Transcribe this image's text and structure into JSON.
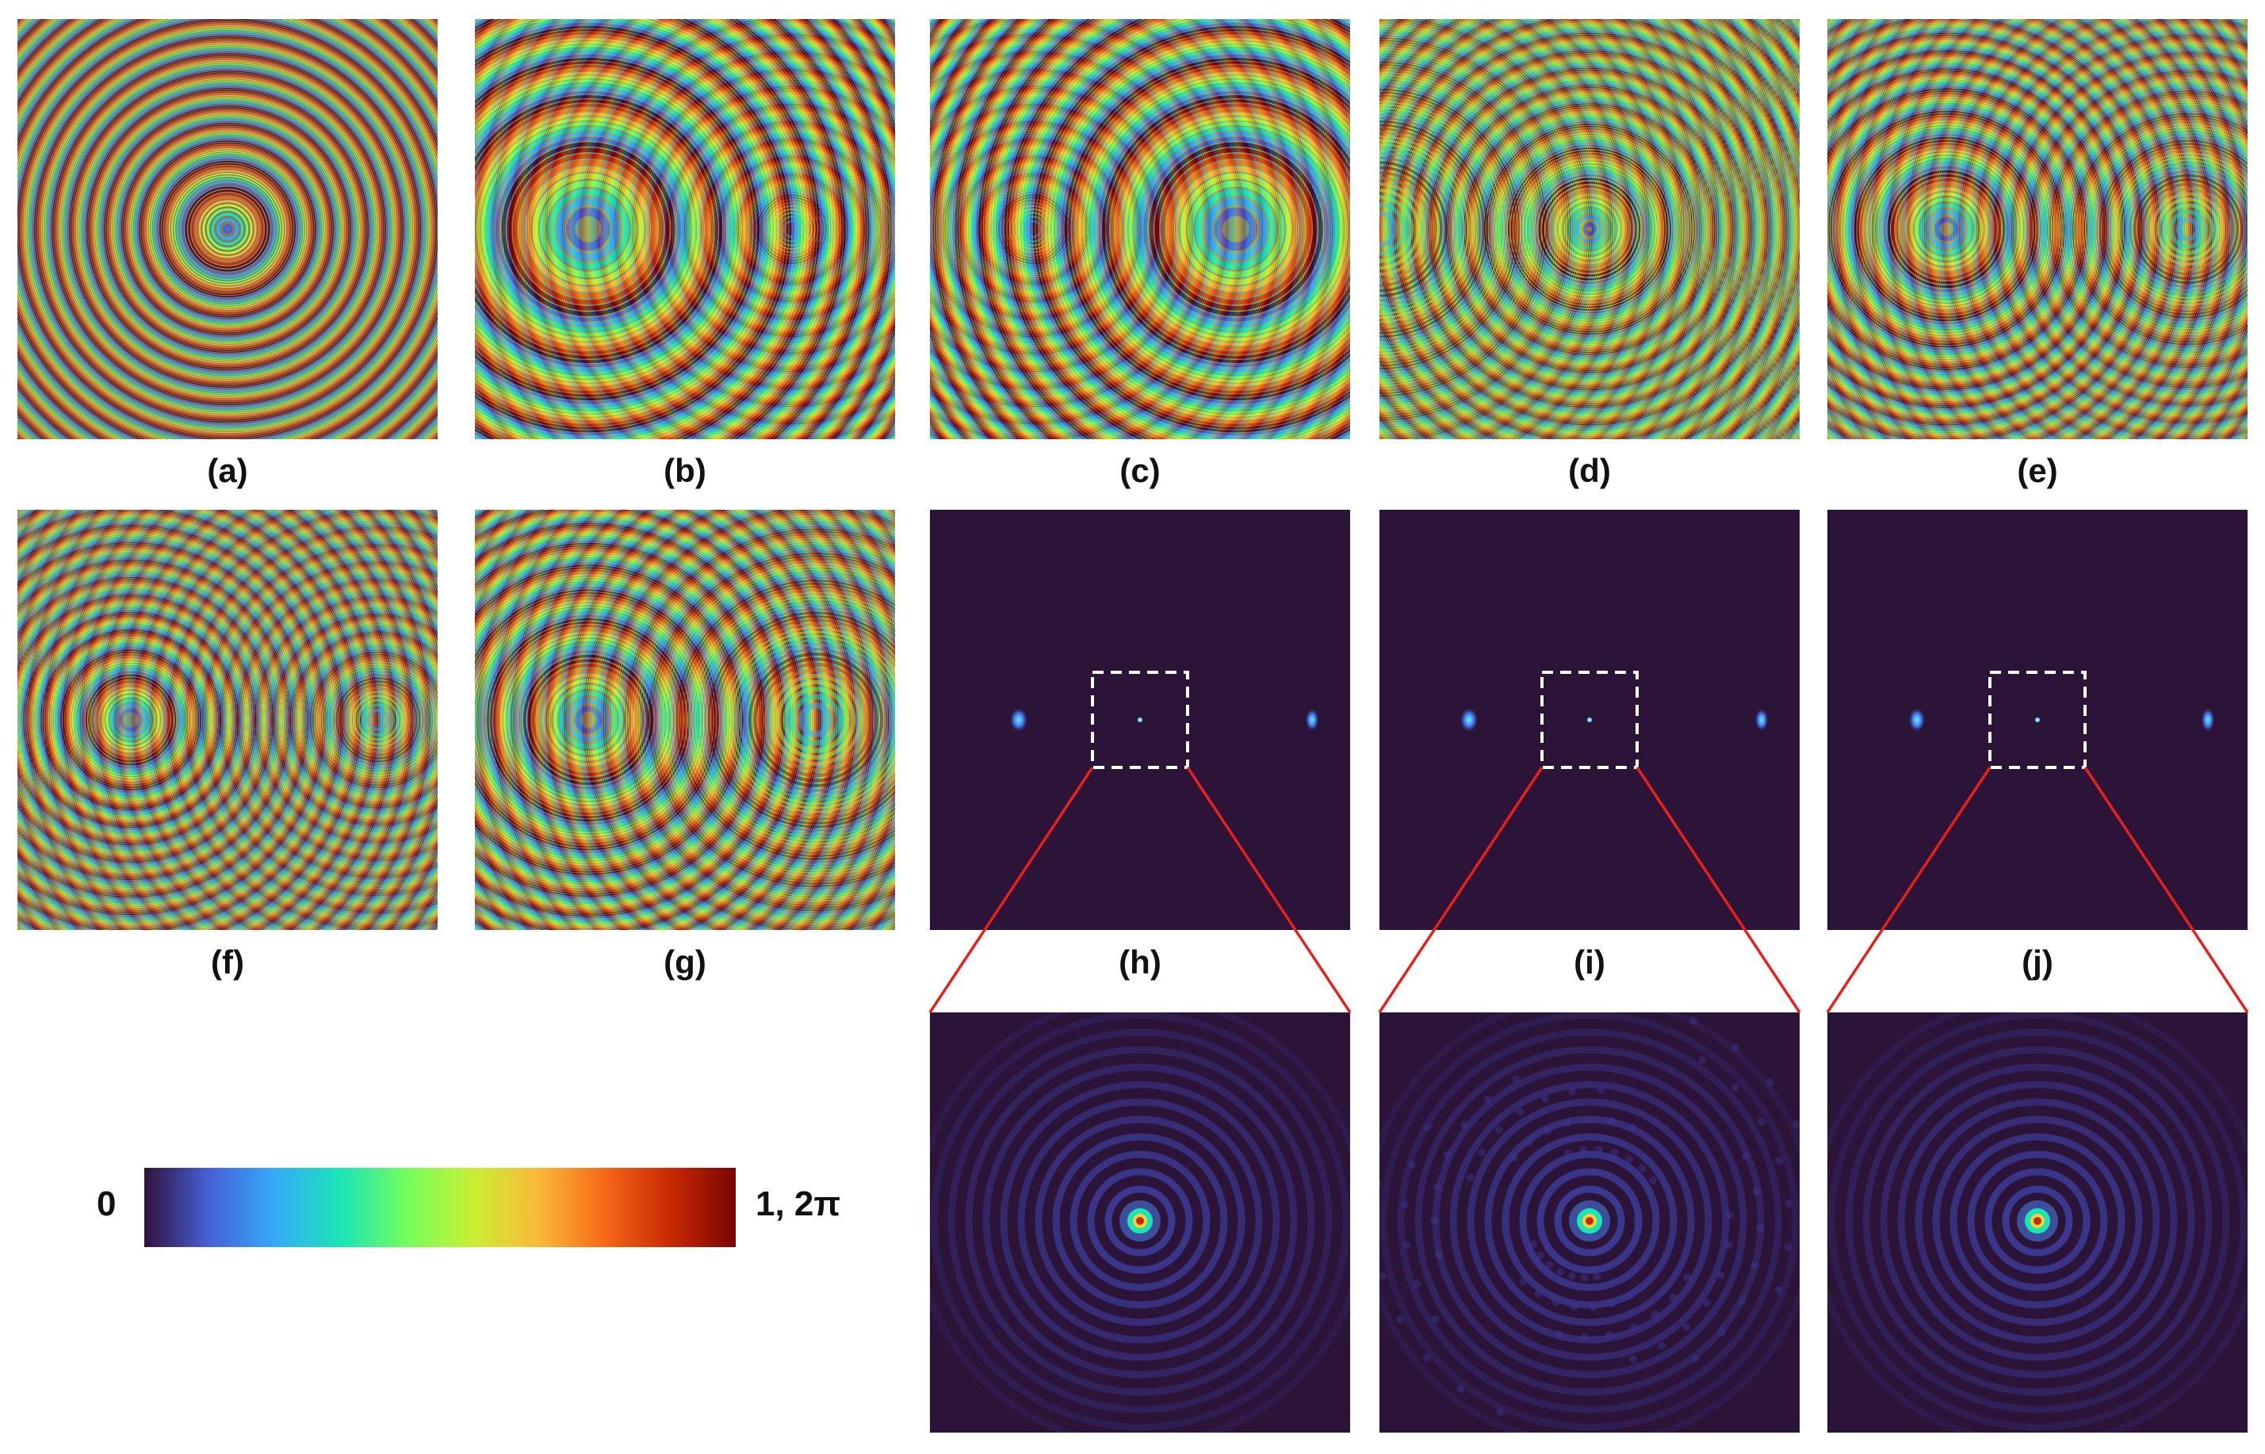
{
  "panels": {
    "a": {
      "label": "(a)",
      "kind": "phase-hologram",
      "centers": "single centered zone pattern"
    },
    "b": {
      "label": "(b)",
      "kind": "phase-hologram"
    },
    "c": {
      "label": "(c)",
      "kind": "phase-hologram"
    },
    "d": {
      "label": "(d)",
      "kind": "phase-hologram"
    },
    "e": {
      "label": "(e)",
      "kind": "phase-hologram"
    },
    "f": {
      "label": "(f)",
      "kind": "phase-hologram"
    },
    "g": {
      "label": "(g)",
      "kind": "phase-hologram"
    },
    "h": {
      "label": "(h)",
      "kind": "intensity-reconstruction"
    },
    "i": {
      "label": "(i)",
      "kind": "intensity-reconstruction"
    },
    "j": {
      "label": "(j)",
      "kind": "intensity-reconstruction"
    }
  },
  "colorbar": {
    "min_label": "0",
    "max_label": "1, 2π",
    "colormap": "turbo",
    "stops": [
      "#30123b",
      "#4662d8",
      "#35abf8",
      "#1be5b5",
      "#74fe5d",
      "#c9ef34",
      "#fbb938",
      "#f56918",
      "#c92903",
      "#7a0403"
    ]
  },
  "colors": {
    "intensity_background": "#2c1338",
    "zoom_box": "#ffffff",
    "zoom_lines": "#e8201c"
  }
}
